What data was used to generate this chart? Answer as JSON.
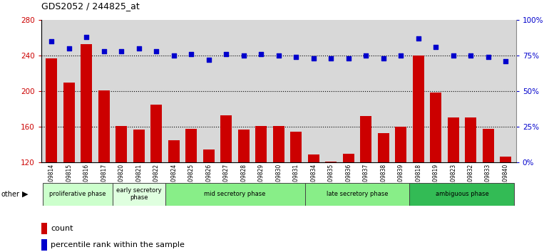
{
  "title": "GDS2052 / 244825_at",
  "samples": [
    "GSM109814",
    "GSM109815",
    "GSM109816",
    "GSM109817",
    "GSM109820",
    "GSM109821",
    "GSM109822",
    "GSM109824",
    "GSM109825",
    "GSM109826",
    "GSM109827",
    "GSM109828",
    "GSM109829",
    "GSM109830",
    "GSM109831",
    "GSM109834",
    "GSM109835",
    "GSM109836",
    "GSM109837",
    "GSM109838",
    "GSM109839",
    "GSM109818",
    "GSM109819",
    "GSM109823",
    "GSM109832",
    "GSM109833",
    "GSM109840"
  ],
  "counts": [
    237,
    210,
    253,
    201,
    161,
    157,
    185,
    145,
    158,
    135,
    173,
    157,
    161,
    161,
    155,
    129,
    121,
    130,
    172,
    153,
    160,
    240,
    199,
    171,
    171,
    158,
    127
  ],
  "percentiles": [
    85,
    80,
    88,
    78,
    78,
    80,
    78,
    75,
    76,
    72,
    76,
    75,
    76,
    75,
    74,
    73,
    73,
    73,
    75,
    73,
    75,
    87,
    81,
    75,
    75,
    74,
    71
  ],
  "phases": [
    {
      "name": "proliferative phase",
      "start": 0,
      "end": 4,
      "color": "#ccffcc"
    },
    {
      "name": "early secretory\nphase",
      "start": 4,
      "end": 7,
      "color": "#dfffdf"
    },
    {
      "name": "mid secretory phase",
      "start": 7,
      "end": 15,
      "color": "#88ee88"
    },
    {
      "name": "late secretory phase",
      "start": 15,
      "end": 21,
      "color": "#88ee88"
    },
    {
      "name": "ambiguous phase",
      "start": 21,
      "end": 27,
      "color": "#33bb55"
    }
  ],
  "ylim_left": [
    120,
    280
  ],
  "ylim_right": [
    0,
    100
  ],
  "yticks_left": [
    120,
    160,
    200,
    240,
    280
  ],
  "yticks_right": [
    0,
    25,
    50,
    75,
    100
  ],
  "bar_color": "#cc0000",
  "scatter_color": "#0000cc",
  "plot_bg": "#d8d8d8",
  "grid_color": "#000000",
  "ylabel_left_color": "#cc0000",
  "ylabel_right_color": "#0000cc"
}
